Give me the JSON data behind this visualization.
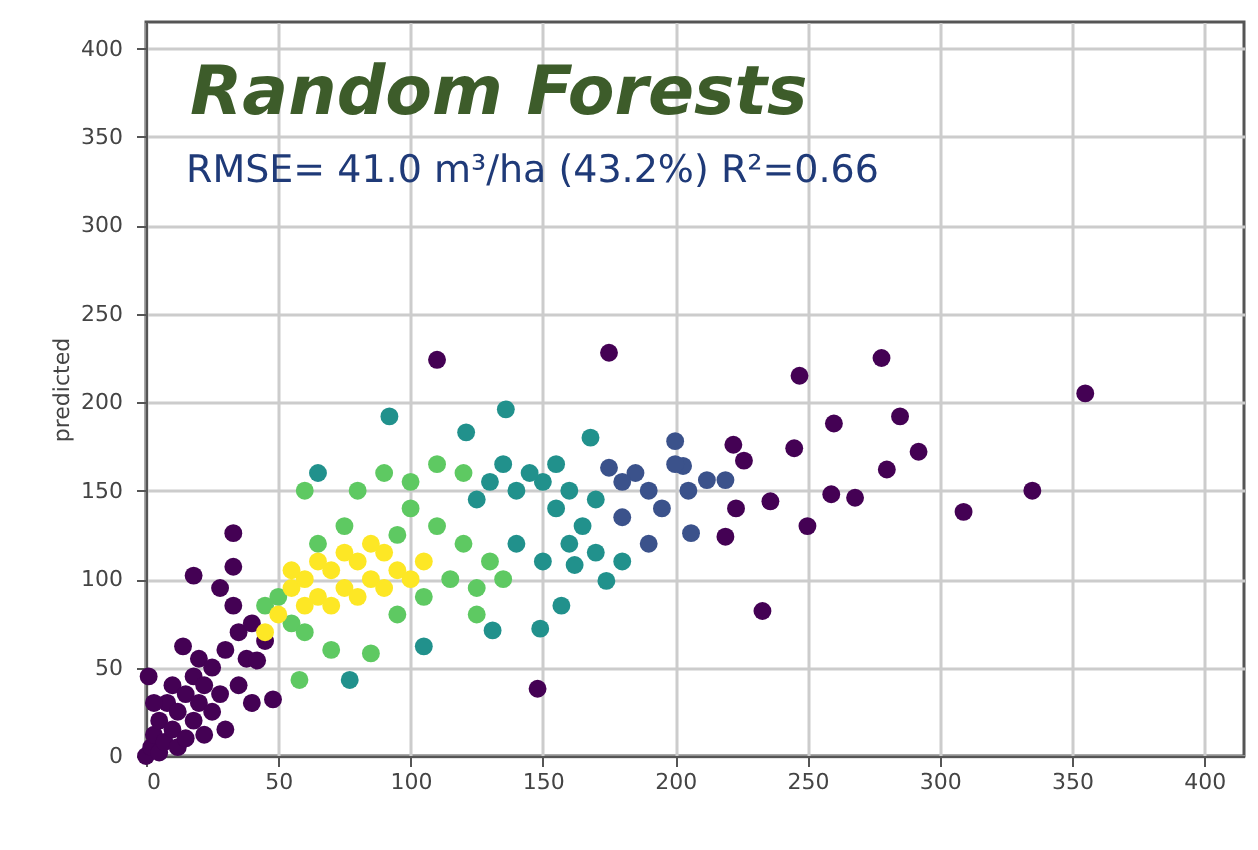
{
  "chart_data": {
    "type": "scatter",
    "title": "Random Forests",
    "subtitle": "RMSE= 41.0 m³/ha (43.2%) R²=0.66",
    "ylabel": "predicted",
    "xlim": [
      0,
      415
    ],
    "ylim": [
      0,
      415
    ],
    "xticks": [
      0,
      50,
      100,
      150,
      200,
      250,
      300,
      350,
      400
    ],
    "yticks": [
      0,
      50,
      100,
      150,
      200,
      250,
      300,
      350,
      400
    ],
    "grid": true,
    "marker": "circle",
    "series": [
      {
        "color": "#440154",
        "x": [
          0,
          2,
          3,
          5,
          5,
          7,
          8,
          10,
          10,
          12,
          12,
          14,
          15,
          15,
          18,
          18,
          18,
          20,
          20,
          22,
          22,
          25,
          25,
          28,
          28,
          30,
          30,
          33,
          33,
          33,
          35,
          35,
          38,
          40,
          40,
          42,
          45,
          48,
          3,
          1,
          110,
          148,
          175,
          223,
          219,
          233,
          236,
          245,
          247,
          250,
          259,
          260,
          268,
          278,
          280,
          285,
          292,
          309,
          335,
          355,
          222,
          226
        ],
        "values": [
          0,
          5,
          12,
          2,
          20,
          8,
          30,
          15,
          40,
          5,
          25,
          62,
          35,
          10,
          20,
          45,
          102,
          30,
          55,
          12,
          40,
          25,
          50,
          95,
          35,
          15,
          60,
          85,
          107,
          126,
          40,
          70,
          55,
          30,
          75,
          54,
          65,
          32,
          30,
          45,
          224,
          38,
          228,
          140,
          124,
          82,
          144,
          174,
          215,
          130,
          148,
          188,
          146,
          225,
          162,
          192,
          172,
          138,
          150,
          205,
          176,
          167
        ]
      },
      {
        "color": "#3b528b",
        "x": [
          200,
          206,
          212,
          219,
          203,
          185,
          190,
          195,
          180,
          200,
          175,
          205,
          190,
          180
        ],
        "values": [
          178,
          126,
          156,
          156,
          164,
          160,
          150,
          140,
          155,
          165,
          163,
          150,
          120,
          135
        ]
      },
      {
        "color": "#21918c",
        "x": [
          92,
          136,
          121,
          65,
          168,
          157,
          131,
          149,
          174,
          105,
          77,
          140,
          150,
          160,
          130,
          145,
          155,
          165,
          170,
          160,
          150,
          140,
          170,
          125,
          135,
          155,
          162,
          180
        ],
        "values": [
          192,
          196,
          183,
          160,
          180,
          85,
          71,
          72,
          99,
          62,
          43,
          150,
          155,
          150,
          155,
          160,
          140,
          130,
          115,
          120,
          110,
          120,
          145,
          145,
          165,
          165,
          108,
          110
        ]
      },
      {
        "color": "#5ec962",
        "x": [
          85,
          58,
          60,
          80,
          90,
          100,
          110,
          120,
          100,
          110,
          120,
          130,
          125,
          115,
          50,
          55,
          60,
          70,
          95,
          105,
          135,
          125,
          75,
          95,
          45,
          65
        ],
        "values": [
          58,
          43,
          150,
          150,
          160,
          155,
          165,
          160,
          140,
          130,
          120,
          110,
          95,
          100,
          90,
          75,
          70,
          60,
          80,
          90,
          100,
          80,
          130,
          125,
          85,
          120
        ]
      },
      {
        "color": "#fde725",
        "x": [
          45,
          50,
          55,
          60,
          65,
          70,
          75,
          80,
          85,
          90,
          95,
          70,
          80,
          60,
          75,
          85,
          100,
          90,
          65,
          55,
          105
        ],
        "values": [
          70,
          80,
          95,
          100,
          90,
          105,
          95,
          110,
          100,
          115,
          105,
          85,
          90,
          85,
          115,
          120,
          100,
          95,
          110,
          105,
          110
        ]
      }
    ]
  }
}
